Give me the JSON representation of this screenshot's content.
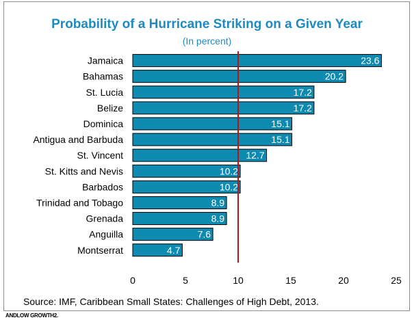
{
  "chart_data": {
    "type": "bar",
    "orientation": "horizontal",
    "title": "Probability of a Hurricane Striking on a Given Year",
    "subtitle": "(In percent)",
    "categories": [
      "Jamaica",
      "Bahamas",
      "St. Lucia",
      "Belize",
      "Dominica",
      "Antigua and Barbuda",
      "St. Vincent",
      "St. Kitts and Nevis",
      "Barbados",
      "Trinidad and Tobago",
      "Grenada",
      "Anguilla",
      "Montserrat"
    ],
    "values": [
      23.6,
      20.2,
      17.2,
      17.2,
      15.1,
      15.1,
      12.7,
      10.2,
      10.2,
      8.9,
      8.9,
      7.6,
      4.7
    ],
    "data_labels": [
      "23.6",
      "20.2",
      "17.2",
      "17.2",
      "15.1",
      "15.1",
      "12.7",
      "10.2",
      "10.2",
      "8.9",
      "8.9",
      "7.6",
      "4.7"
    ],
    "xlim": [
      0,
      25
    ],
    "xticks": [
      0,
      5,
      10,
      15,
      20,
      25
    ],
    "xtick_labels": [
      "0",
      "5",
      "10",
      "15",
      "20",
      "25"
    ],
    "reference_line": 10,
    "grid": false,
    "colors": {
      "bar": "#0f8ab0",
      "bar_edge": "#000000",
      "reference_line": "#b0151b",
      "title": "#1f8ac0"
    }
  },
  "source": "Source: IMF, Caribbean Small States: Challenges of High Debt, 2013.",
  "footnote": "ANDLOW GROWTH2."
}
